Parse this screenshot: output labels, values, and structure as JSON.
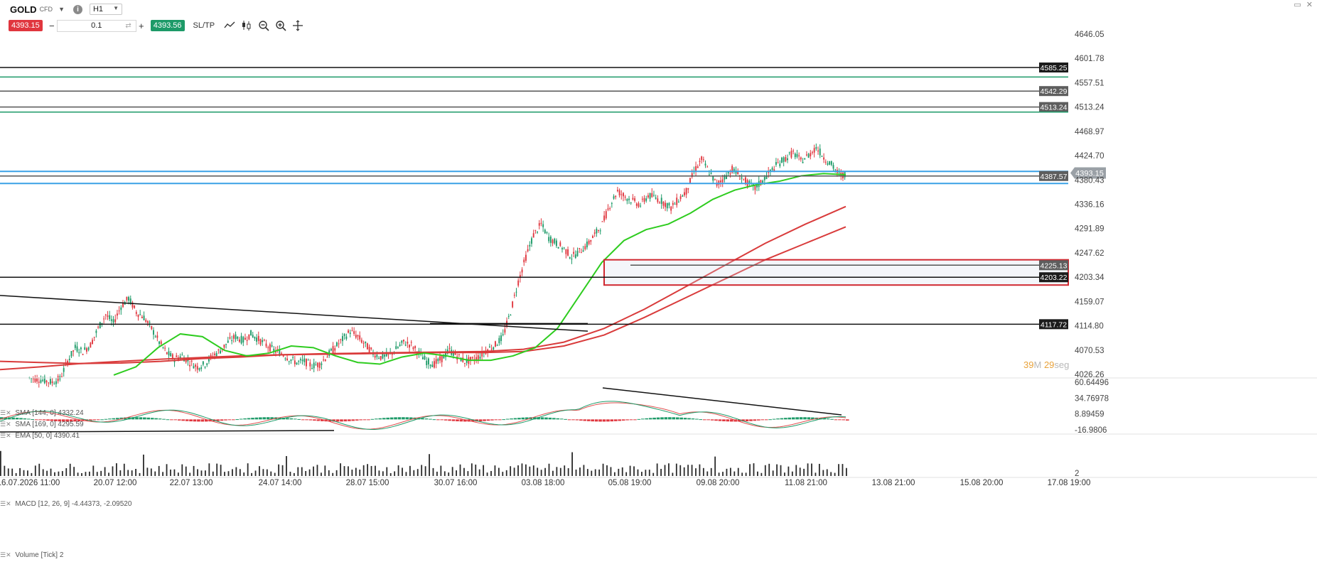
{
  "toolbar": {
    "symbol": "GOLD",
    "instrument_type": "CFD",
    "info_icon": "info-icon",
    "timeframe": "H1",
    "sell_price": "4393.15",
    "quantity": "0.1",
    "buy_price": "4393.56",
    "sltp_label": "SL/TP",
    "icons": [
      "line-chart-icon",
      "candlestick-icon",
      "zoom-out-icon",
      "zoom-in-icon",
      "crosshair-icon"
    ],
    "minus": "−",
    "plus": "+"
  },
  "countdown": {
    "minutes": "39",
    "minutes_unit": "M",
    "seconds": "29",
    "seconds_unit": "seg"
  },
  "colors": {
    "up": "#1d9a68",
    "down": "#e0363e",
    "sma144": "#d93b3b",
    "sma169": "#d93b3b",
    "ema50": "#2ecc1f",
    "level_green": "#1d9a68",
    "level_black": "#111111",
    "level_gray": "#555555",
    "level_blue": "#3aa1e6"
  },
  "chart_data": [
    {
      "type": "candlestick",
      "name": "price",
      "y_axis_ticks": [
        "4646.05",
        "4601.78",
        "4557.51",
        "4513.24",
        "4468.97",
        "4424.70",
        "4380.43",
        "4336.16",
        "4291.89",
        "4247.62",
        "4203.34",
        "4159.07",
        "4114.80",
        "4070.53",
        "4026.26"
      ],
      "ylim": [
        4026.26,
        4646.05
      ],
      "x_axis_ticks": [
        "16.07.2026 11:00",
        "20.07 12:00",
        "22.07 13:00",
        "24.07 14:00",
        "28.07 15:00",
        "30.07 16:00",
        "03.08 18:00",
        "05.08 19:00",
        "09.08 20:00",
        "11.08 21:00",
        "13.08 21:00",
        "15.08 20:00",
        "17.08 19:00"
      ],
      "current_price": "4393.15",
      "ohlc_path": [
        4020,
        4018,
        4015,
        4012,
        4018,
        4050,
        4075,
        4068,
        4080,
        4110,
        4135,
        4120,
        4150,
        4165,
        4140,
        4130,
        4110,
        4085,
        4065,
        4055,
        4060,
        4048,
        4040,
        4045,
        4060,
        4070,
        4085,
        4095,
        4088,
        4100,
        4090,
        4080,
        4070,
        4065,
        4055,
        4048,
        4050,
        4042,
        4045,
        4060,
        4075,
        4090,
        4105,
        4095,
        4080,
        4065,
        4058,
        4060,
        4072,
        4085,
        4080,
        4065,
        4050,
        4045,
        4055,
        4070,
        4060,
        4050,
        4052,
        4060,
        4072,
        4080,
        4095,
        4140,
        4195,
        4240,
        4280,
        4300,
        4275,
        4265,
        4255,
        4240,
        4250,
        4262,
        4280,
        4300,
        4335,
        4360,
        4350,
        4342,
        4335,
        4352,
        4348,
        4340,
        4330,
        4345,
        4360,
        4395,
        4418,
        4395,
        4372,
        4385,
        4400,
        4388,
        4375,
        4365,
        4380,
        4395,
        4410,
        4420,
        4430,
        4415,
        4425,
        4440,
        4422,
        4408,
        4390
      ],
      "series": [
        {
          "name": "SMA [144, 0] 4332.24",
          "path": [
            4050,
            4048,
            4046,
            4047,
            4050,
            4055,
            4058,
            4062,
            4064,
            4065,
            4066,
            4067,
            4068,
            4072,
            4085,
            4110,
            4145,
            4185,
            4225,
            4265,
            4300,
            4332
          ]
        },
        {
          "name": "SMA [169, 0] 4295.59",
          "path": [
            4035,
            4040,
            4046,
            4050,
            4054,
            4057,
            4060,
            4062,
            4063,
            4064,
            4065,
            4066,
            4066,
            4068,
            4078,
            4098,
            4130,
            4165,
            4200,
            4235,
            4265,
            4295
          ]
        },
        {
          "name": "EMA [50, 0] 4390.41",
          "path": [
            4025,
            4040,
            4075,
            4100,
            4095,
            4070,
            4060,
            4065,
            4078,
            4075,
            4060,
            4048,
            4045,
            4058,
            4065,
            4060,
            4052,
            4052,
            4060,
            4075,
            4110,
            4170,
            4230,
            4270,
            4290,
            4300,
            4320,
            4345,
            4362,
            4372,
            4378,
            4388,
            4392,
            4390
          ]
        }
      ],
      "horizontal_levels": [
        {
          "value": 4585.25,
          "label": "4585.25",
          "color": "black"
        },
        {
          "value": 4568,
          "label": "",
          "color": "green"
        },
        {
          "value": 4542.29,
          "label": "4542.29",
          "color": "gray"
        },
        {
          "value": 4513.24,
          "label": "4513.24",
          "color": "gray"
        },
        {
          "value": 4504,
          "label": "",
          "color": "green"
        },
        {
          "value": 4396,
          "label": "",
          "color": "blue"
        },
        {
          "value": 4387.57,
          "label": "4387.57",
          "color": "gray"
        },
        {
          "value": 4374,
          "label": "",
          "color": "blue"
        },
        {
          "value": 4225.13,
          "label": "4225.13",
          "color": "gray"
        },
        {
          "value": 4203.22,
          "label": "4203.22",
          "color": "black"
        },
        {
          "value": 4117.72,
          "label": "4117.72",
          "color": "black"
        }
      ],
      "zone": {
        "from": 4189,
        "to": 4235
      },
      "trendline": {
        "from": 4170,
        "to": 4105
      }
    },
    {
      "type": "line",
      "name": "MACD [12, 26, 9] -4.44373, -2.09520",
      "y_axis_ticks": [
        "60.64496",
        "34.76978",
        "8.89459",
        "-16.9806"
      ],
      "ylim": [
        -16.9806,
        60.64496
      ]
    },
    {
      "type": "bar",
      "name": "Volume [Tick] 2",
      "y_axis_ticks": [
        "2"
      ]
    }
  ]
}
